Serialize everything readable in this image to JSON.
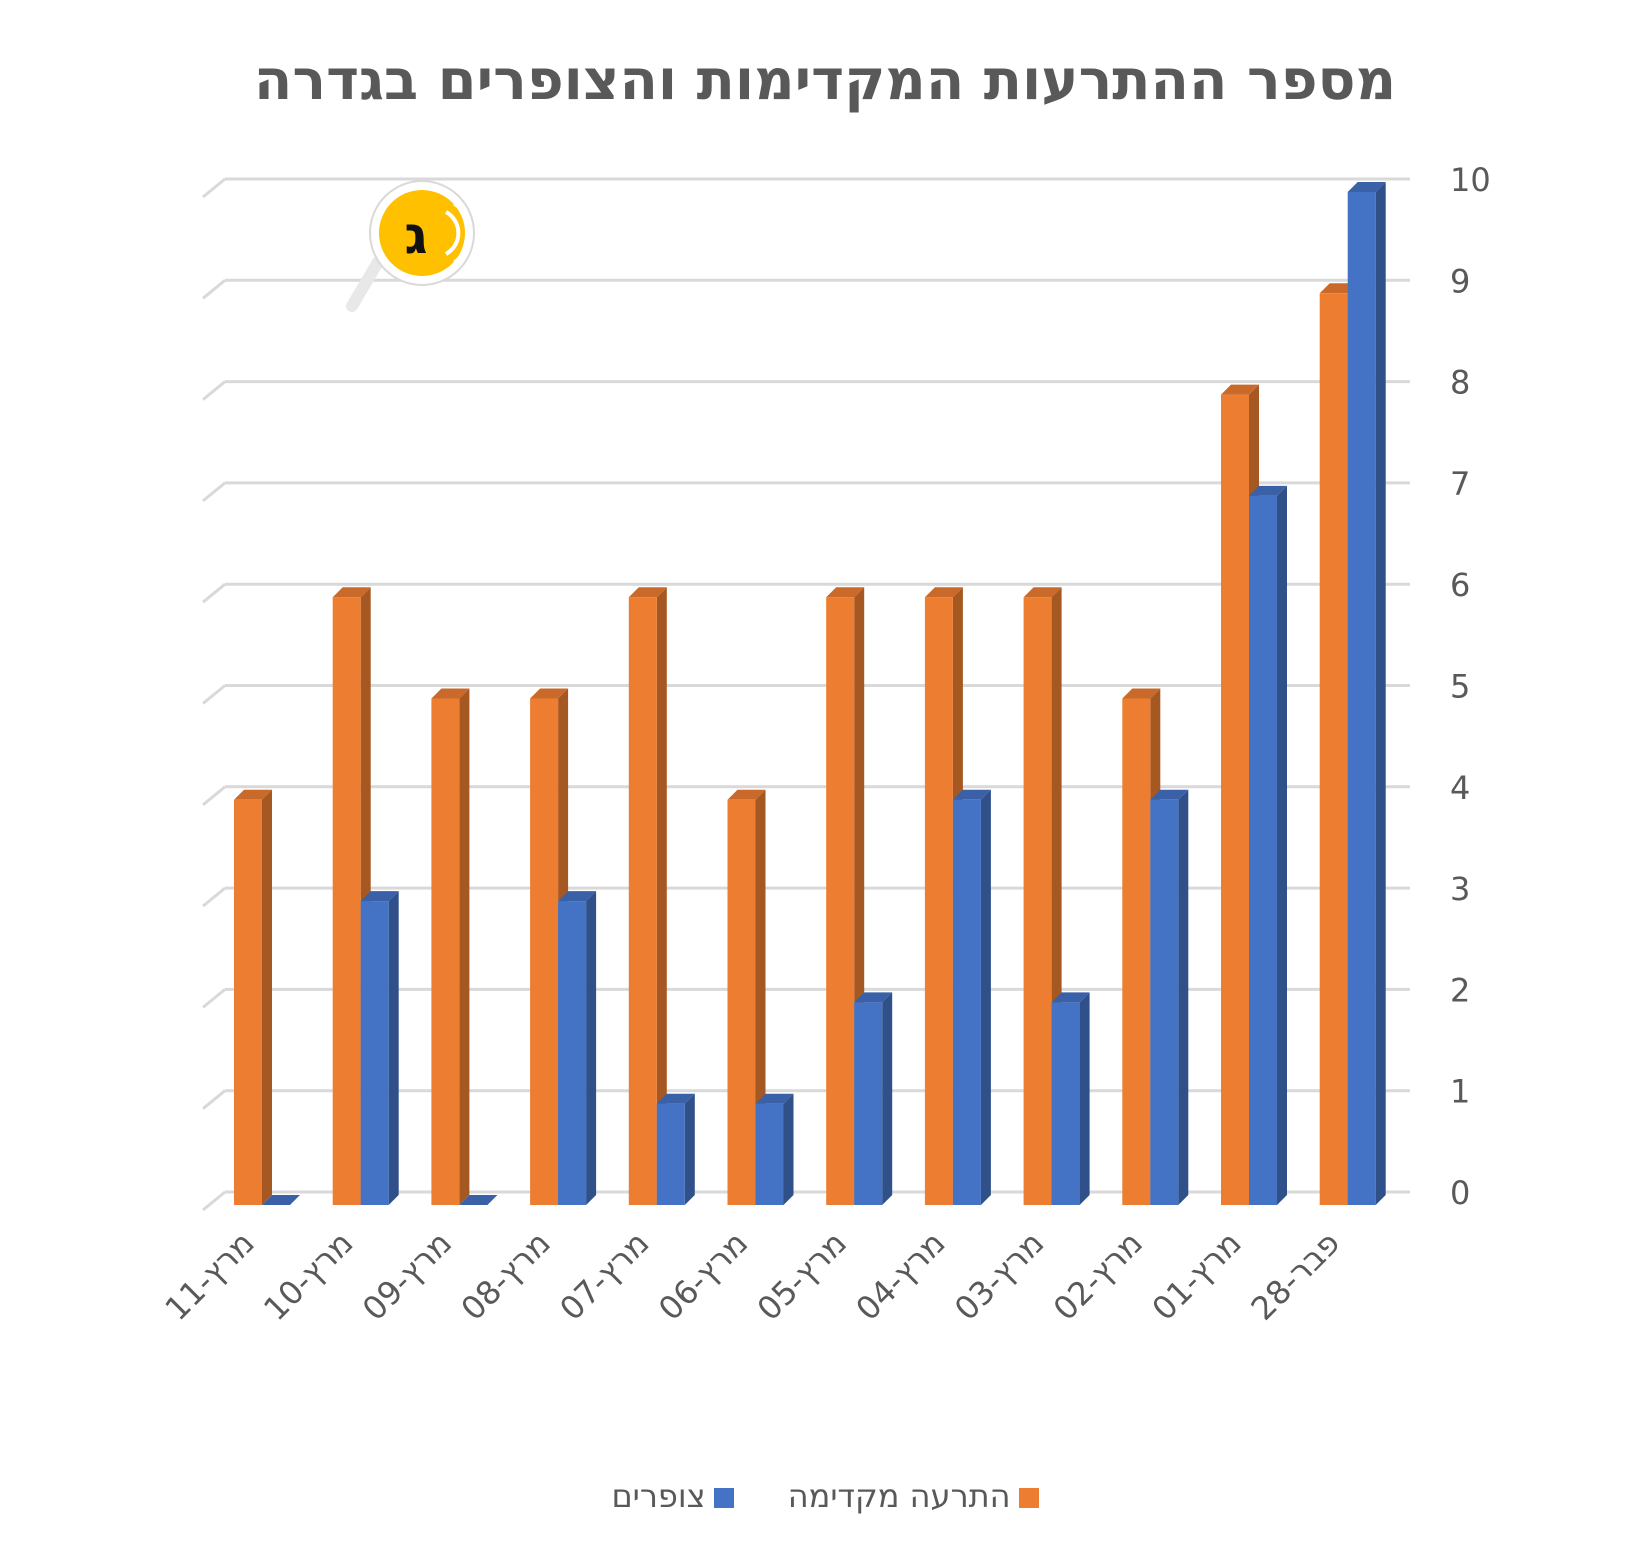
{
  "chart_data": {
    "type": "bar",
    "title": "מספר ההתרעות המקדימות והצופרים בגדרה",
    "categories": [
      "11-מרץ",
      "10-מרץ",
      "09-מרץ",
      "08-מרץ",
      "07-מרץ",
      "06-מרץ",
      "05-מרץ",
      "04-מרץ",
      "03-מרץ",
      "02-מרץ",
      "01-מרץ",
      "28-פבר"
    ],
    "series": [
      {
        "name": "התרעה מקדימה",
        "color": "#ED7D31",
        "values": [
          4,
          6,
          5,
          5,
          6,
          4,
          6,
          6,
          6,
          5,
          8,
          9
        ]
      },
      {
        "name": "צופרים",
        "color": "#4472C4",
        "values": [
          0,
          3,
          0,
          3,
          1,
          1,
          2,
          4,
          2,
          4,
          7,
          10
        ]
      }
    ],
    "ylim": [
      0,
      10
    ],
    "yticks": [
      0,
      1,
      2,
      3,
      4,
      5,
      6,
      7,
      8,
      9,
      10
    ],
    "y_axis_side": "right",
    "grid": true,
    "legend_position": "bottom",
    "logo_icon": "magnifier-badge-icon",
    "logo_letter": "ג"
  }
}
